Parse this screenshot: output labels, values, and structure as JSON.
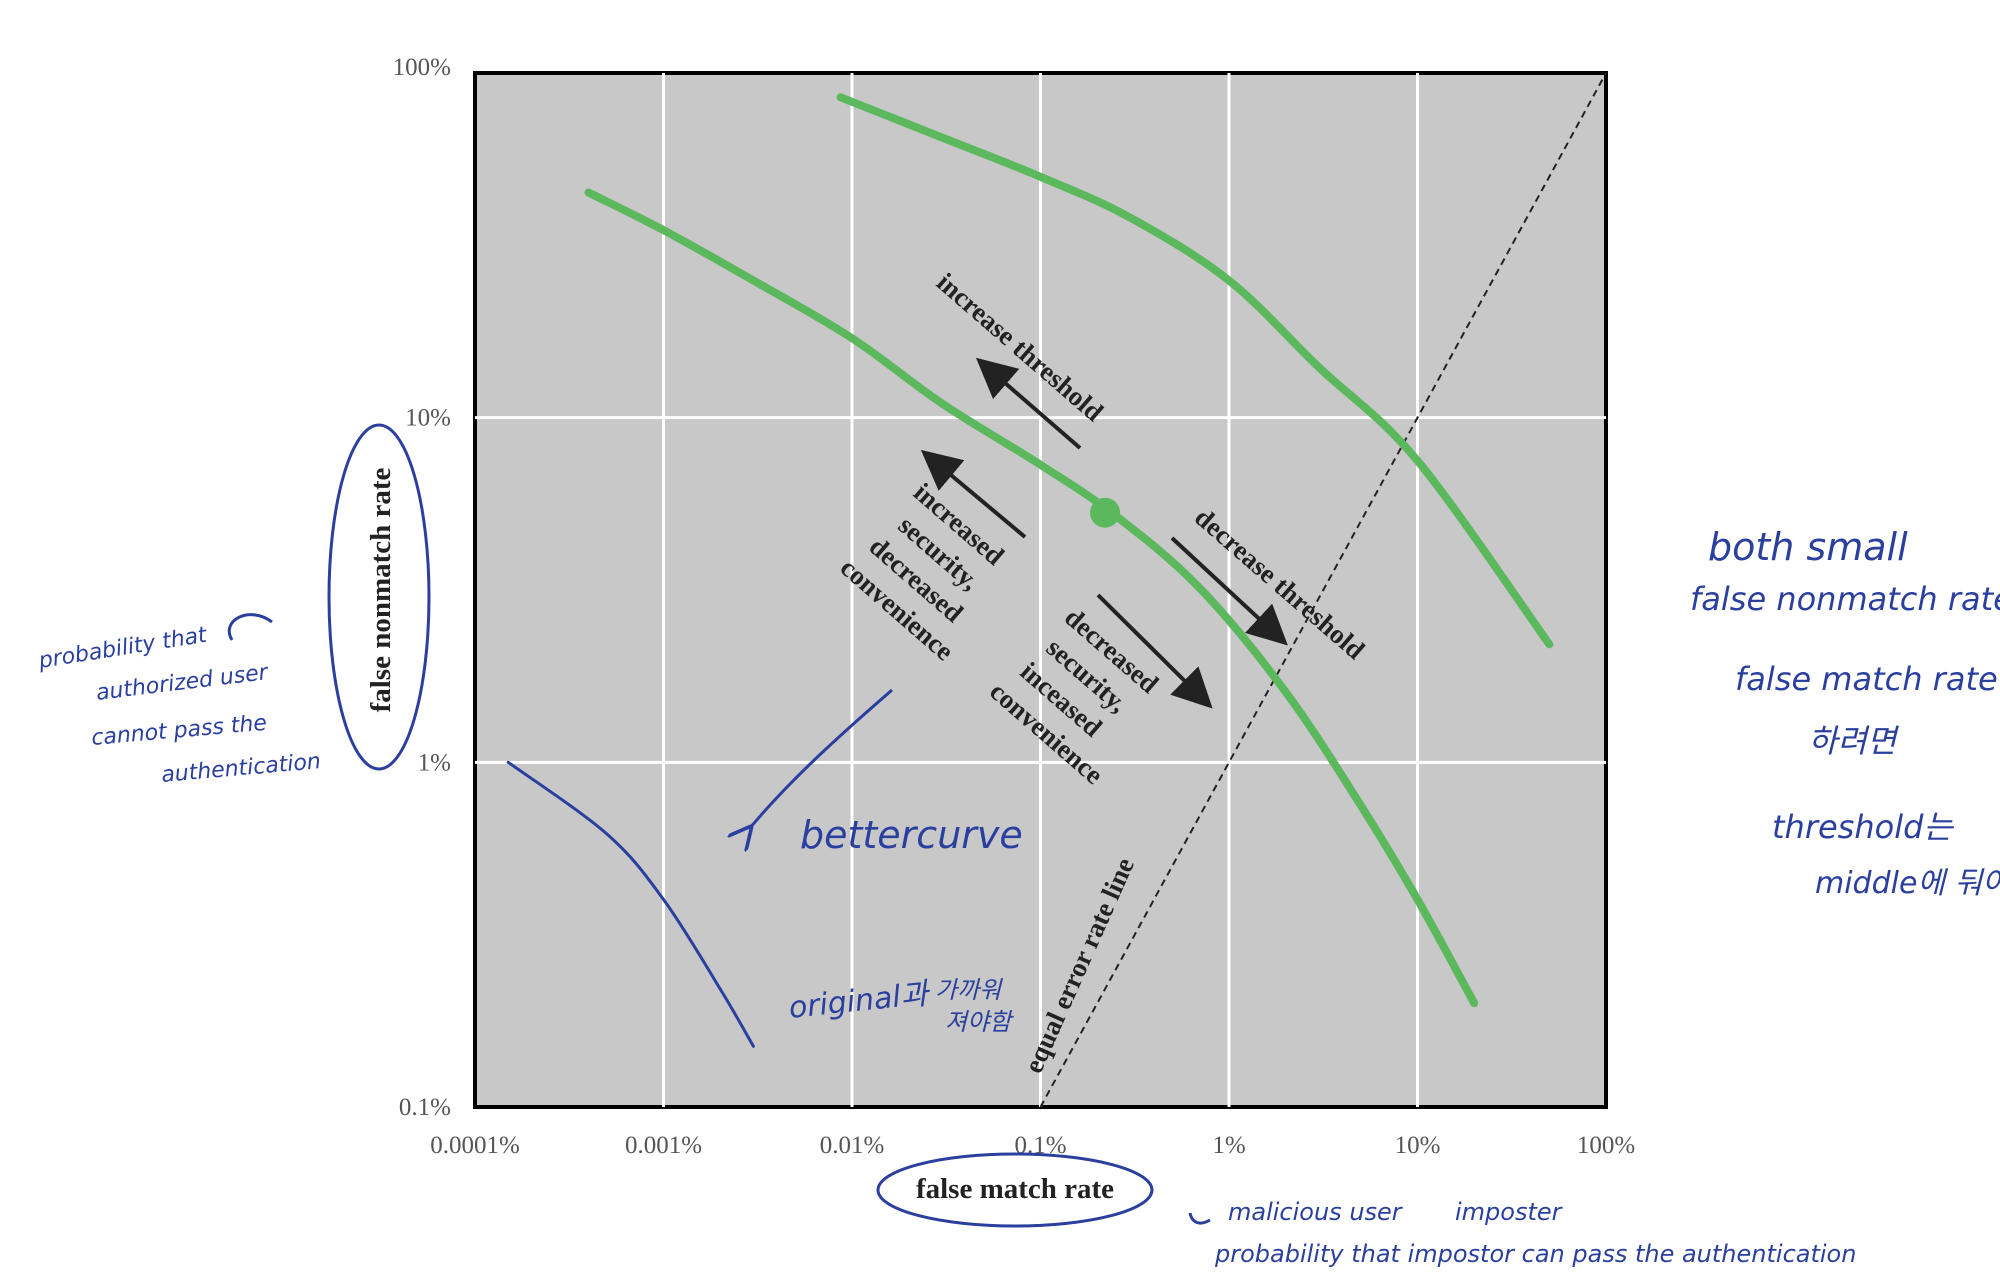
{
  "chart_data": {
    "type": "line",
    "x_scale": "log",
    "y_scale": "log",
    "xlim": [
      0.0001,
      100
    ],
    "ylim": [
      0.1,
      100
    ],
    "x_ticks": [
      0.0001,
      0.001,
      0.01,
      0.1,
      1,
      10,
      100
    ],
    "y_ticks": [
      0.1,
      1,
      10,
      100
    ],
    "x_tick_labels": [
      "0.0001%",
      "0.001%",
      "0.01%",
      "0.1%",
      "1%",
      "10%",
      "100%"
    ],
    "y_tick_labels": [
      "0.1%",
      "1%",
      "10%",
      "100%"
    ],
    "xlabel": "false match rate",
    "ylabel": "false nonmatch rate",
    "grid": true,
    "background": "#c8c8c8",
    "series": [
      {
        "color": "#5cb85c",
        "x": [
          0.0087,
          0.03,
          0.1,
          0.3,
          1,
          3,
          10,
          50
        ],
        "y": [
          85,
          65,
          50,
          38,
          25,
          14,
          7.5,
          2.2
        ]
      },
      {
        "color": "#5cb85c",
        "x": [
          0.0004,
          0.001,
          0.003,
          0.01,
          0.03,
          0.1,
          0.25,
          0.7,
          2,
          5,
          10,
          20
        ],
        "y": [
          45,
          35,
          25,
          17,
          11,
          7.3,
          5.2,
          3.2,
          1.6,
          0.75,
          0.4,
          0.2
        ]
      }
    ],
    "marker_point": {
      "x": 0.22,
      "y": 5.3,
      "color": "#5cb85c"
    },
    "reference_line": {
      "label": "equal error rate line",
      "x": [
        0.1,
        100
      ],
      "y": [
        0.1,
        100
      ],
      "style": "dashed"
    },
    "hand_curve": {
      "color": "#2a3f9e",
      "x": [
        0.00015,
        0.0005,
        0.001,
        0.002,
        0.003
      ],
      "y": [
        1,
        0.62,
        0.4,
        0.22,
        0.15
      ]
    },
    "annotations": {
      "increase_threshold": "increase threshold",
      "decrease_threshold": "decrease threshold",
      "increased_security": [
        "increased",
        "security,",
        "decreased",
        "convenience"
      ],
      "decreased_security": [
        "decreased",
        "security,",
        "inceased",
        "convenience"
      ]
    },
    "handwritten": {
      "better_curve": "bettercurve",
      "original_note": [
        "original과",
        "가까워",
        "져야함"
      ],
      "fnmr_note": [
        "probability that",
        "authorized user",
        "cannot pass the",
        "authentication"
      ],
      "fmr_note": [
        "malicious user",
        "imposter"
      ],
      "fmr_note2": "probability that impostor can pass the authentication",
      "right_note": [
        "both small",
        "false nonmatch rate",
        "false match rate",
        "하려면",
        "threshold는",
        "middle에 둬야"
      ]
    }
  }
}
